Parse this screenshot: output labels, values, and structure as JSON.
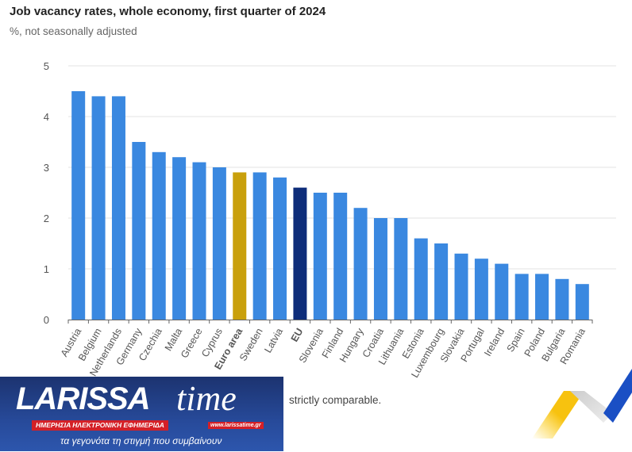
{
  "chart_data": {
    "type": "bar",
    "title": "Job vacancy rates, whole economy, first quarter of 2024",
    "subtitle": "%, not seasonally adjusted",
    "categories": [
      "Austria",
      "Belgium",
      "Netherlands",
      "Germany",
      "Czechia",
      "Malta",
      "Greece",
      "Cyprus",
      "Euro area",
      "Sweden",
      "Latvia",
      "EU",
      "Slovenia",
      "Finland",
      "Hungary",
      "Croatia",
      "Lithuania",
      "Estonia",
      "Luxembourg",
      "Slovakia",
      "Portugal",
      "Ireland",
      "Spain",
      "Poland",
      "Bulgaria",
      "Romania"
    ],
    "values": [
      4.5,
      4.4,
      4.4,
      3.5,
      3.3,
      3.2,
      3.1,
      3.0,
      2.9,
      2.9,
      2.8,
      2.6,
      2.5,
      2.5,
      2.2,
      2.0,
      2.0,
      1.6,
      1.5,
      1.3,
      1.2,
      1.1,
      0.9,
      0.9,
      0.8,
      0.7
    ],
    "highlight": {
      "Euro area": "#c9a00c",
      "EU": "#0e2d7a"
    },
    "bold_categories": [
      "Euro area",
      "EU"
    ],
    "bar_color": "#3a88e0",
    "ylim": [
      0,
      5
    ],
    "yticks": [
      "0",
      "1",
      "2",
      "3",
      "4",
      "5"
    ],
    "grid": true,
    "xlabel": "",
    "ylabel": ""
  },
  "footnote": "strictly comparable.",
  "logo": {
    "name": "LARISSA",
    "name2": "time",
    "url": "www.larissatime.gr",
    "tagline": "ΗΜΕΡΗΣΙΑ ΗΛΕΚΤΡΟΝΙΚΗ ΕΦΗΜΕΡΙΔΑ",
    "slogan": "τα γεγονότα τη στιγμή που συμβαίνουν"
  }
}
